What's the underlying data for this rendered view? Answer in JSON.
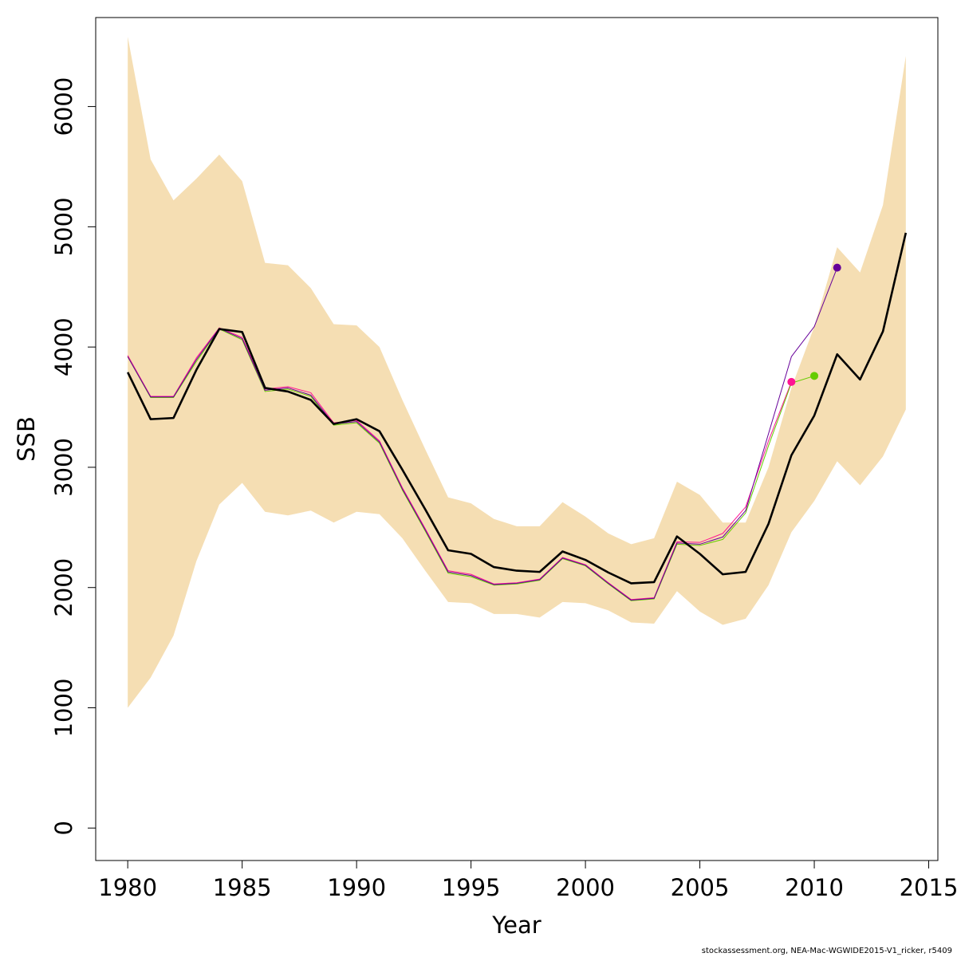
{
  "chart_data": {
    "type": "line",
    "title": "",
    "xlabel": "Year",
    "ylabel": "SSB",
    "xlim": [
      1978.6,
      2015.4
    ],
    "ylim": [
      -270,
      6740
    ],
    "x_ticks": [
      1980,
      1985,
      1990,
      1995,
      2000,
      2005,
      2010,
      2015
    ],
    "y_ticks": [
      0,
      1000,
      2000,
      3000,
      4000,
      5000,
      6000
    ],
    "grid": false,
    "legend": "none",
    "confidence_band": {
      "color": "#f5deb3",
      "x": [
        1980,
        1981,
        1982,
        1983,
        1984,
        1985,
        1986,
        1987,
        1988,
        1989,
        1990,
        1991,
        1992,
        1993,
        1994,
        1995,
        1996,
        1997,
        1998,
        1999,
        2000,
        2001,
        2002,
        2003,
        2004,
        2005,
        2006,
        2007,
        2008,
        2009,
        2010,
        2011,
        2012,
        2013,
        2014
      ],
      "upper": [
        6580,
        5560,
        5220,
        5400,
        5600,
        5380,
        4700,
        4680,
        4490,
        4190,
        4180,
        4000,
        3560,
        3150,
        2750,
        2700,
        2570,
        2510,
        2510,
        2710,
        2590,
        2450,
        2360,
        2410,
        2880,
        2770,
        2540,
        2540,
        3000,
        3660,
        4170,
        4830,
        4620,
        5180,
        6420
      ],
      "lower": [
        1000,
        1250,
        1600,
        2220,
        2690,
        2870,
        2630,
        2600,
        2640,
        2540,
        2630,
        2610,
        2410,
        2140,
        1880,
        1870,
        1780,
        1780,
        1750,
        1880,
        1870,
        1810,
        1710,
        1700,
        1970,
        1800,
        1690,
        1740,
        2020,
        2460,
        2720,
        3050,
        2850,
        3090,
        3480
      ]
    },
    "series": [
      {
        "color": "#000000",
        "x": [
          1980,
          1981,
          1982,
          1983,
          1984,
          1985,
          1986,
          1987,
          1988,
          1989,
          1990,
          1991,
          1992,
          1993,
          1994,
          1995,
          1996,
          1997,
          1998,
          1999,
          2000,
          2001,
          2002,
          2003,
          2004,
          2005,
          2006,
          2007,
          2008,
          2009,
          2010,
          2011,
          2012,
          2013,
          2014
        ],
        "values": [
          3790,
          3400,
          3410,
          3810,
          4150,
          4125,
          3660,
          3630,
          3560,
          3360,
          3400,
          3300,
          2980,
          2650,
          2310,
          2280,
          2170,
          2140,
          2130,
          2300,
          2230,
          2125,
          2035,
          2045,
          2425,
          2280,
          2110,
          2130,
          2530,
          3100,
          3430,
          3940,
          3730,
          4130,
          4950
        ]
      },
      {
        "color": "#ff1493",
        "x": [
          1980,
          1981,
          1982,
          1983,
          1984,
          1985,
          1986,
          1987,
          1988,
          1989,
          1990,
          1991,
          1992,
          1993,
          1994,
          1995,
          1996,
          1997,
          1998,
          1999,
          2000,
          2001,
          2002,
          2003,
          2004,
          2005,
          2006,
          2007,
          2008,
          2009
        ],
        "values": [
          3930,
          3590,
          3590,
          3910,
          4160,
          4080,
          3650,
          3670,
          3620,
          3370,
          3390,
          3220,
          2830,
          2490,
          2140,
          2110,
          2030,
          2040,
          2070,
          2250,
          2190,
          2040,
          1900,
          1915,
          2380,
          2375,
          2450,
          2670,
          3220,
          3710
        ],
        "end_point": true
      },
      {
        "color": "#66cc00",
        "x": [
          1980,
          1981,
          1982,
          1983,
          1984,
          1985,
          1986,
          1987,
          1988,
          1989,
          1990,
          1991,
          1992,
          1993,
          1994,
          1995,
          1996,
          1997,
          1998,
          1999,
          2000,
          2001,
          2002,
          2003,
          2004,
          2005,
          2006,
          2007,
          2008,
          2009,
          2010
        ],
        "values": [
          3920,
          3580,
          3580,
          3880,
          4150,
          4060,
          3630,
          3650,
          3590,
          3350,
          3370,
          3200,
          2810,
          2470,
          2120,
          2090,
          2020,
          2030,
          2060,
          2240,
          2180,
          2030,
          1890,
          1905,
          2360,
          2350,
          2400,
          2620,
          3180,
          3700,
          3760
        ],
        "end_point": true
      },
      {
        "color": "#660099",
        "x": [
          1980,
          1981,
          1982,
          1983,
          1984,
          1985,
          1986,
          1987,
          1988,
          1989,
          1990,
          1991,
          1992,
          1993,
          1994,
          1995,
          1996,
          1997,
          1998,
          1999,
          2000,
          2001,
          2002,
          2003,
          2004,
          2005,
          2006,
          2007,
          2008,
          2009,
          2010,
          2011
        ],
        "values": [
          3920,
          3585,
          3585,
          3895,
          4155,
          4070,
          3640,
          3660,
          3600,
          3360,
          3380,
          3210,
          2820,
          2480,
          2130,
          2100,
          2025,
          2035,
          2065,
          2245,
          2185,
          2035,
          1895,
          1910,
          2370,
          2360,
          2420,
          2640,
          3280,
          3920,
          4170,
          4660
        ],
        "end_point": true
      }
    ]
  },
  "footer_text": "stockassessment.org, NEA-Mac-WGWIDE2015-V1_ricker, r5409"
}
